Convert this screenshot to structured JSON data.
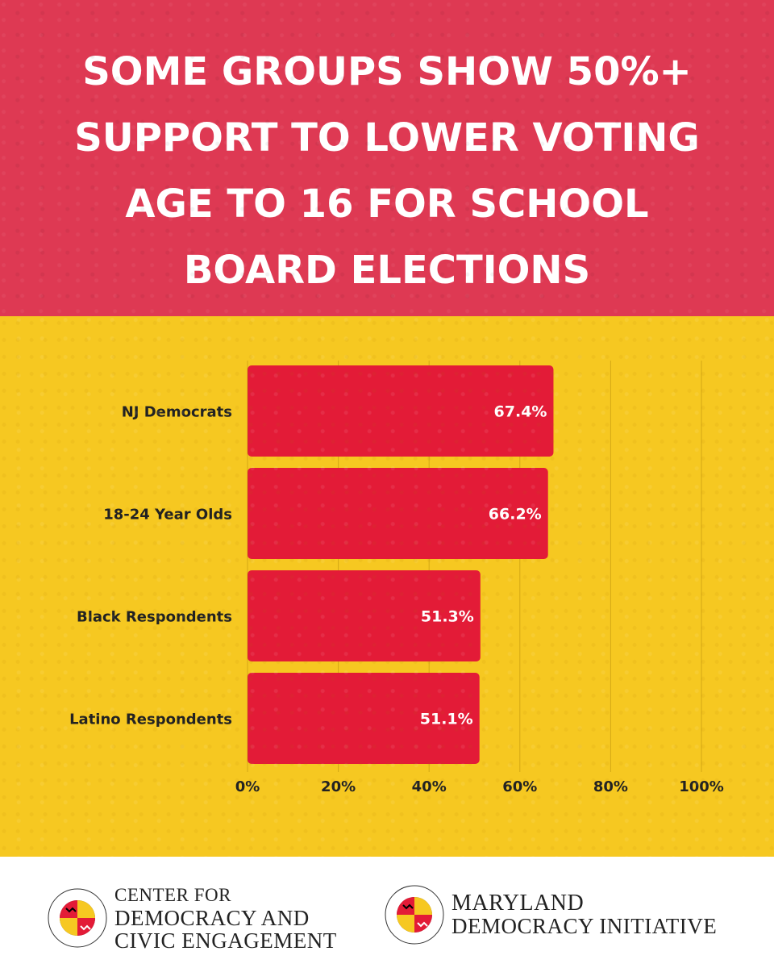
{
  "header": {
    "title_lines": [
      "SOME GROUPS SHOW 50%+",
      "SUPPORT TO LOWER VOTING",
      "AGE TO 16 FOR SCHOOL",
      "BOARD ELECTIONS"
    ]
  },
  "chart_data": {
    "type": "bar",
    "orientation": "horizontal",
    "title": "SOME GROUPS SHOW 50%+ SUPPORT TO LOWER VOTING AGE TO 16 FOR SCHOOL BOARD ELECTIONS",
    "categories": [
      "NJ Democrats",
      "18-24 Year Olds",
      "Black Respondents",
      "Latino Respondents"
    ],
    "values": [
      67.4,
      66.2,
      51.3,
      51.1
    ],
    "data_labels": [
      "67.4%",
      "66.2%",
      "51.3%",
      "51.1%"
    ],
    "xlim": [
      0,
      100
    ],
    "x_ticks": [
      0,
      20,
      40,
      60,
      80,
      100
    ],
    "x_tick_labels": [
      "0%",
      "20%",
      "40%",
      "60%",
      "80%",
      "100%"
    ],
    "xlabel": "",
    "ylabel": "",
    "grid": true,
    "legend": "none",
    "colors": {
      "bar": "#e31b37",
      "background": "#f6c821",
      "header": "#de3953",
      "text": "#222222",
      "label": "#ffffff"
    }
  },
  "footer": {
    "left_logo": {
      "icon": "university-of-maryland-seal-icon",
      "lines": [
        "CENTER FOR",
        "DEMOCRACY AND",
        "CIVIC ENGAGEMENT"
      ]
    },
    "right_logo": {
      "icon": "university-of-maryland-seal-icon",
      "lines": [
        "MARYLAND",
        "DEMOCRACY INITIATIVE"
      ]
    }
  }
}
